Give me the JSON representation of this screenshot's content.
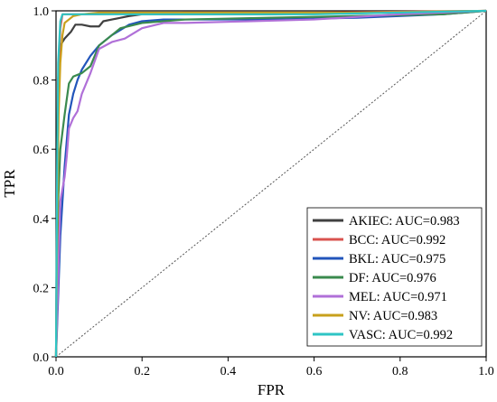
{
  "chart_data": {
    "type": "line",
    "title": "",
    "xlabel": "FPR",
    "ylabel": "TPR",
    "xlim": [
      0,
      1
    ],
    "ylim": [
      0,
      1
    ],
    "x_ticks": [
      "0.0",
      "0.2",
      "0.4",
      "0.6",
      "0.8",
      "1.0"
    ],
    "y_ticks": [
      "0.0",
      "0.2",
      "0.4",
      "0.6",
      "0.8",
      "1.0"
    ],
    "grid": false,
    "legend_position": "bottom-right",
    "diagonal_reference": true,
    "series": [
      {
        "name": "AKIEC: AUC=0.983",
        "color": "#404040",
        "x": [
          0,
          0.003,
          0.005,
          0.01,
          0.02,
          0.035,
          0.045,
          0.06,
          0.08,
          0.1,
          0.11,
          0.13,
          0.15,
          0.17,
          0.2,
          0.3,
          0.5,
          0.8,
          1.0
        ],
        "y": [
          0,
          0.55,
          0.8,
          0.9,
          0.92,
          0.94,
          0.96,
          0.96,
          0.955,
          0.955,
          0.97,
          0.975,
          0.98,
          0.985,
          0.99,
          0.99,
          0.99,
          0.995,
          1.0
        ]
      },
      {
        "name": "BCC: AUC=0.992",
        "color": "#d9534f",
        "x": [
          0,
          0.005,
          0.01,
          0.015,
          0.02,
          0.05,
          0.1,
          0.3,
          0.6,
          1.0
        ],
        "y": [
          0,
          0.8,
          0.95,
          0.99,
          0.99,
          0.99,
          0.99,
          0.995,
          0.995,
          1.0
        ]
      },
      {
        "name": "BKL: AUC=0.975",
        "color": "#2255bb",
        "x": [
          0,
          0.01,
          0.02,
          0.03,
          0.04,
          0.05,
          0.06,
          0.08,
          0.1,
          0.13,
          0.17,
          0.2,
          0.25,
          0.3,
          0.5,
          0.7,
          0.9,
          1.0
        ],
        "y": [
          0,
          0.35,
          0.55,
          0.7,
          0.76,
          0.8,
          0.83,
          0.87,
          0.9,
          0.93,
          0.96,
          0.97,
          0.975,
          0.975,
          0.975,
          0.98,
          0.99,
          1.0
        ]
      },
      {
        "name": "DF: AUC=0.976",
        "color": "#3a8a4e",
        "x": [
          0,
          0.005,
          0.01,
          0.02,
          0.03,
          0.04,
          0.06,
          0.08,
          0.1,
          0.15,
          0.2,
          0.25,
          0.3,
          0.5,
          0.7,
          0.9,
          1.0
        ],
        "y": [
          0,
          0.45,
          0.6,
          0.7,
          0.79,
          0.81,
          0.82,
          0.84,
          0.9,
          0.95,
          0.965,
          0.97,
          0.975,
          0.98,
          0.985,
          0.99,
          1.0
        ]
      },
      {
        "name": "MEL: AUC=0.971",
        "color": "#b070d8",
        "x": [
          0,
          0.01,
          0.02,
          0.025,
          0.03,
          0.04,
          0.05,
          0.06,
          0.07,
          0.08,
          0.1,
          0.13,
          0.16,
          0.2,
          0.25,
          0.3,
          0.45,
          0.6,
          0.8,
          1.0
        ],
        "y": [
          0,
          0.45,
          0.52,
          0.58,
          0.66,
          0.69,
          0.71,
          0.76,
          0.79,
          0.82,
          0.89,
          0.91,
          0.92,
          0.95,
          0.965,
          0.965,
          0.97,
          0.975,
          0.99,
          1.0
        ]
      },
      {
        "name": "NV: AUC=0.983",
        "color": "#c8a01c",
        "x": [
          0,
          0.003,
          0.006,
          0.01,
          0.015,
          0.02,
          0.03,
          0.04,
          0.06,
          0.1,
          0.2,
          0.4,
          0.7,
          1.0
        ],
        "y": [
          0,
          0.4,
          0.7,
          0.85,
          0.93,
          0.965,
          0.975,
          0.985,
          0.99,
          0.995,
          0.995,
          0.995,
          0.995,
          1.0
        ]
      },
      {
        "name": "VASC: AUC=0.992",
        "color": "#2ec4c4",
        "x": [
          0,
          0.003,
          0.005,
          0.01,
          0.015,
          0.03,
          0.1,
          0.3,
          0.6,
          1.0
        ],
        "y": [
          0,
          0.6,
          0.85,
          0.97,
          0.99,
          0.99,
          0.99,
          0.99,
          0.99,
          1.0
        ]
      }
    ]
  }
}
